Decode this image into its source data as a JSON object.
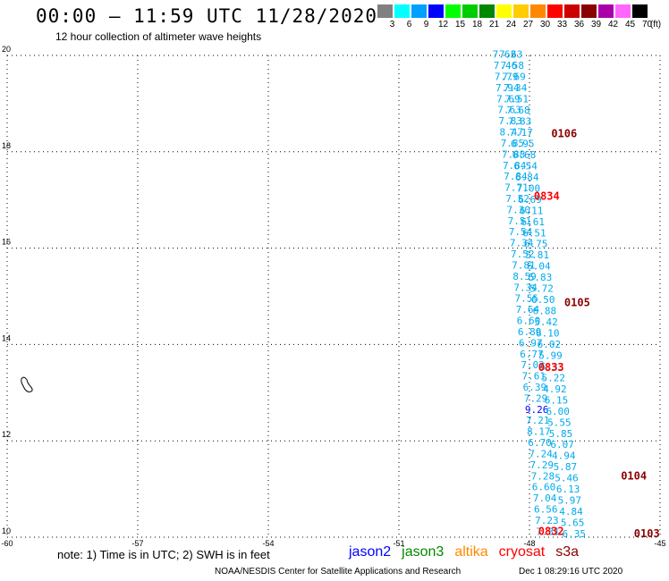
{
  "header": {
    "title": "00:00 – 11:59 UTC 11/28/2020",
    "subtitle": "12 hour collection of altimeter wave heights"
  },
  "legend": {
    "unit": "(ft)",
    "entries": [
      {
        "label": "3",
        "color": "#808080"
      },
      {
        "label": "6",
        "color": "#00ffff"
      },
      {
        "label": "9",
        "color": "#00a0ff"
      },
      {
        "label": "12",
        "color": "#0000ff"
      },
      {
        "label": "15",
        "color": "#00ff00"
      },
      {
        "label": "18",
        "color": "#00cc00"
      },
      {
        "label": "21",
        "color": "#008800"
      },
      {
        "label": "24",
        "color": "#ffff00"
      },
      {
        "label": "27",
        "color": "#ffcc00"
      },
      {
        "label": "30",
        "color": "#ff8800"
      },
      {
        "label": "33",
        "color": "#ff0000"
      },
      {
        "label": "36",
        "color": "#cc0000"
      },
      {
        "label": "39",
        "color": "#880000"
      },
      {
        "label": "42",
        "color": "#aa00aa"
      },
      {
        "label": "45",
        "color": "#ff66ff"
      },
      {
        "label": "70",
        "color": "#000000"
      }
    ]
  },
  "map": {
    "lon_range": [
      -60,
      -45
    ],
    "lat_range": [
      10,
      20
    ],
    "lon_ticks": [
      "-60",
      "-57",
      "-54",
      "-51",
      "-48",
      "-45"
    ],
    "lat_ticks": [
      "10",
      "12",
      "14",
      "16",
      "18",
      "20"
    ],
    "obs_color": "#00aaee",
    "highlight_color": "#0000ff",
    "track_a": {
      "lon_start": -48.85,
      "lat_start": 19.95,
      "lon_end": -47.85,
      "lat_end": 10.05,
      "values": [
        "7.63",
        "7.46",
        "7.79",
        "7.94",
        "7.69",
        "7.63",
        "7.83",
        "8.47",
        "7.85",
        "7.88",
        "7.84",
        "7.84",
        "7.71",
        "7.52",
        "7.30",
        "7.51",
        "7.54",
        "7.34",
        "7.52",
        "7.81",
        "8.59",
        "7.34",
        "7.55",
        "7.64",
        "6.60",
        "6.89",
        "6.97",
        "6.77",
        "7.02",
        "7.61",
        "6.39",
        "7.29",
        "9.26",
        "7.21",
        "8.17",
        "6.70",
        "7.24",
        "7.29",
        "7.28",
        "6.60",
        "7.04",
        "6.56",
        "7.23",
        "7.31"
      ]
    },
    "track_b": {
      "lon_start": -48.7,
      "lat_start": 19.95,
      "lon_end": -47.25,
      "lat_end": 10.0,
      "values": [
        "7.63",
        "7.58",
        "7.69",
        "7.34",
        "7.51",
        "7.68",
        "7.83",
        "7.17",
        "6.95",
        "6.68",
        "6.54",
        "6.84",
        "7.00",
        "6.69",
        "6.11",
        "6.61",
        "6.51",
        "6.75",
        "5.81",
        "6.04",
        "5.83",
        "5.72",
        "6.50",
        "6.88",
        "5.42",
        "6.10",
        "6.02",
        "5.99",
        "5.33",
        "5.22",
        "4.92",
        "6.15",
        "6.00",
        "5.55",
        "5.85",
        "6.07",
        "4.94",
        "5.87",
        "5.46",
        "6.13",
        "5.97",
        "4.84",
        "5.65",
        "6.35"
      ]
    },
    "track_a_highlight_index": 32,
    "time_labels": [
      {
        "text": "0106",
        "lon": -47.5,
        "lat": 18.3,
        "color": "#8b0000"
      },
      {
        "text": "0834",
        "lon": -47.9,
        "lat": 17.0,
        "color": "#ff0000"
      },
      {
        "text": "0105",
        "lon": -47.2,
        "lat": 14.8,
        "color": "#8b0000"
      },
      {
        "text": "0833",
        "lon": -47.8,
        "lat": 13.45,
        "color": "#ff0000"
      },
      {
        "text": "0104",
        "lon": -45.9,
        "lat": 11.2,
        "color": "#8b0000"
      },
      {
        "text": "0832",
        "lon": -47.8,
        "lat": 10.05,
        "color": "#ff0000"
      },
      {
        "text": "0103",
        "lon": -45.6,
        "lat": 10.0,
        "color": "#8b0000"
      }
    ]
  },
  "footer": {
    "note": "note: 1) Time is in UTC; 2) SWH is in feet",
    "satellites": [
      {
        "name": "jason2",
        "color": "#0000ff"
      },
      {
        "name": "jason3",
        "color": "#008800"
      },
      {
        "name": "altika",
        "color": "#ff8800"
      },
      {
        "name": "cryosat",
        "color": "#ff0000"
      },
      {
        "name": "s3a",
        "color": "#8b0000"
      }
    ],
    "credit": "NOAA/NESDIS Center for Satellite Applications and Research",
    "timestamp": "Dec  1 08:29:16 UTC 2020"
  }
}
